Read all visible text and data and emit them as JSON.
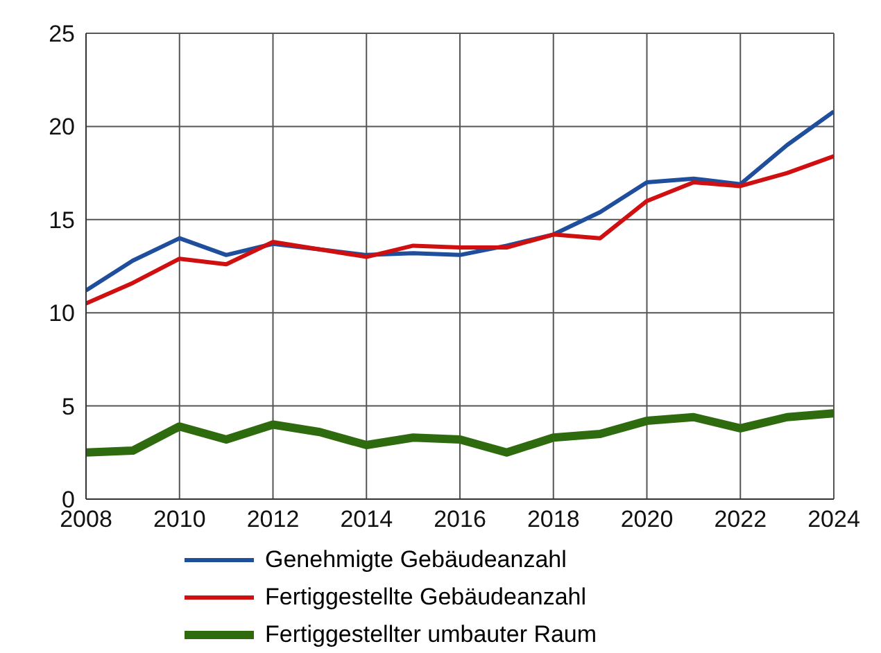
{
  "chart_data": {
    "type": "line",
    "x": [
      2008,
      2009,
      2010,
      2011,
      2012,
      2013,
      2014,
      2015,
      2016,
      2017,
      2018,
      2019,
      2020,
      2021,
      2022,
      2023,
      2024
    ],
    "series": [
      {
        "name": "Genehmigte Gebäudeanzahl",
        "color": "#1f4e9c",
        "values": [
          11.2,
          12.8,
          14.0,
          13.1,
          13.7,
          13.4,
          13.1,
          13.2,
          13.1,
          13.6,
          14.2,
          15.4,
          17.0,
          17.2,
          16.9,
          19.0,
          20.8
        ]
      },
      {
        "name": "Fertiggestellte Gebäudeanzahl",
        "color": "#d01010",
        "values": [
          10.5,
          11.6,
          12.9,
          12.6,
          13.8,
          13.4,
          13.0,
          13.6,
          13.5,
          13.5,
          14.2,
          14.0,
          16.0,
          17.0,
          16.8,
          17.5,
          18.4
        ]
      },
      {
        "name": "Fertiggestellter umbauter Raum",
        "color": "#2e6b0e",
        "values": [
          2.5,
          2.6,
          3.9,
          3.2,
          4.0,
          3.6,
          2.9,
          3.3,
          3.2,
          2.5,
          3.3,
          3.5,
          4.2,
          4.4,
          3.8,
          4.4,
          4.6
        ]
      }
    ],
    "xlim": [
      2008,
      2024
    ],
    "xticks": [
      2008,
      2010,
      2012,
      2014,
      2016,
      2018,
      2020,
      2022,
      2024
    ],
    "ylim": [
      0,
      25
    ],
    "yticks": [
      0,
      5,
      10,
      15,
      20,
      25
    ],
    "grid": true,
    "legend": "bottom"
  }
}
